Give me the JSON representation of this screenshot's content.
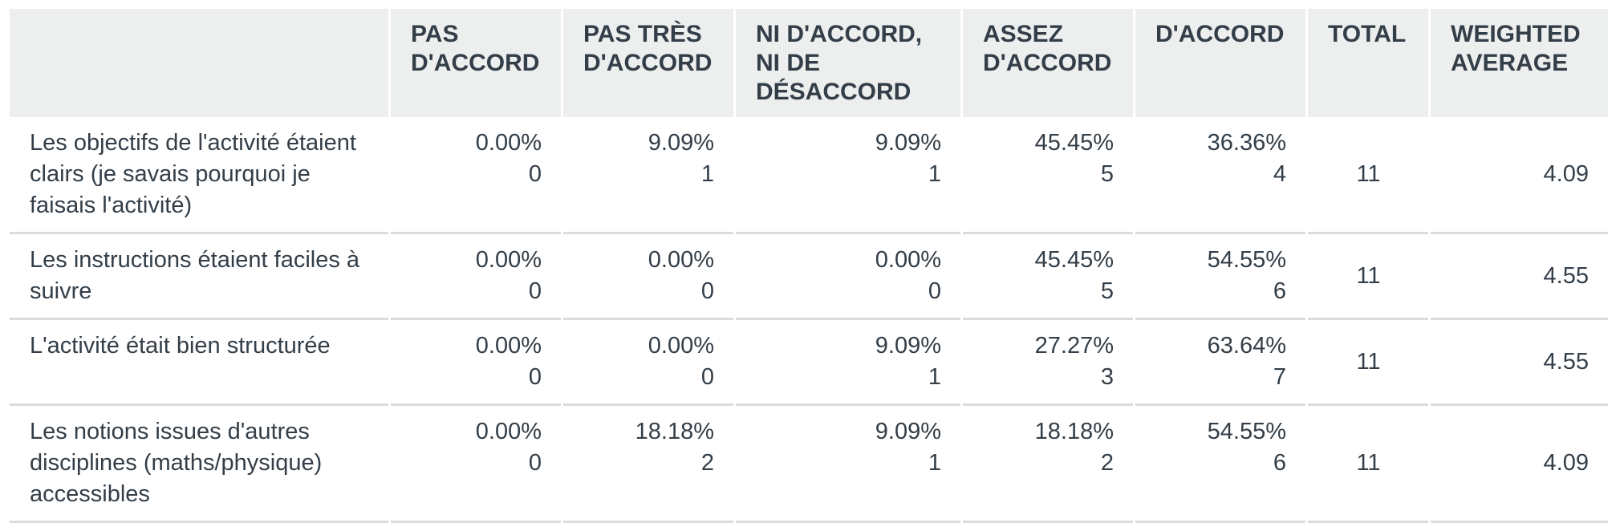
{
  "table": {
    "columns": [
      "",
      "PAS D'ACCORD",
      "PAS TRÈS D'ACCORD",
      "NI D'ACCORD, NI DE DÉSACCORD",
      "ASSEZ D'ACCORD",
      "D'ACCORD",
      "TOTAL",
      "WEIGHTED AVERAGE"
    ],
    "rows": [
      {
        "label": "Les objectifs de l'activité étaient clairs (je savais pourquoi je faisais l'activité)",
        "cells": [
          {
            "pct": "0.00%",
            "count": "0"
          },
          {
            "pct": "9.09%",
            "count": "1"
          },
          {
            "pct": "9.09%",
            "count": "1"
          },
          {
            "pct": "45.45%",
            "count": "5"
          },
          {
            "pct": "36.36%",
            "count": "4"
          }
        ],
        "total": "11",
        "average": "4.09"
      },
      {
        "label": "Les instructions étaient faciles à suivre",
        "cells": [
          {
            "pct": "0.00%",
            "count": "0"
          },
          {
            "pct": "0.00%",
            "count": "0"
          },
          {
            "pct": "0.00%",
            "count": "0"
          },
          {
            "pct": "45.45%",
            "count": "5"
          },
          {
            "pct": "54.55%",
            "count": "6"
          }
        ],
        "total": "11",
        "average": "4.55"
      },
      {
        "label": "L'activité était bien structurée",
        "cells": [
          {
            "pct": "0.00%",
            "count": "0"
          },
          {
            "pct": "0.00%",
            "count": "0"
          },
          {
            "pct": "9.09%",
            "count": "1"
          },
          {
            "pct": "27.27%",
            "count": "3"
          },
          {
            "pct": "63.64%",
            "count": "7"
          }
        ],
        "total": "11",
        "average": "4.55"
      },
      {
        "label": "Les notions issues d'autres disciplines (maths/physique) accessibles",
        "cells": [
          {
            "pct": "0.00%",
            "count": "0"
          },
          {
            "pct": "18.18%",
            "count": "2"
          },
          {
            "pct": "9.09%",
            "count": "1"
          },
          {
            "pct": "18.18%",
            "count": "2"
          },
          {
            "pct": "54.55%",
            "count": "6"
          }
        ],
        "total": "11",
        "average": "4.09"
      }
    ]
  }
}
